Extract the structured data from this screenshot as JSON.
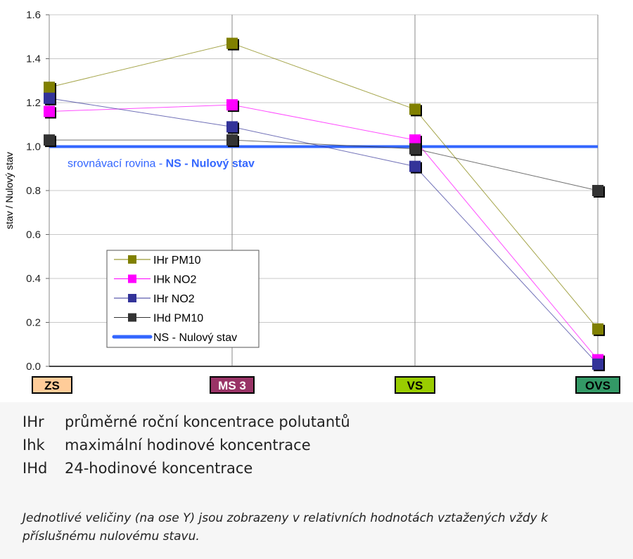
{
  "chart_data": {
    "type": "line",
    "ylabel": "stav / Nulový stav",
    "ylim": [
      0,
      1.6
    ],
    "yticks": [
      "0.0",
      "0.2",
      "0.4",
      "0.6",
      "0.8",
      "1.0",
      "1.2",
      "1.4",
      "1.6"
    ],
    "categories": [
      "ZS",
      "MS 3",
      "VS",
      "OVS"
    ],
    "category_colors": [
      "#ffcc99",
      "#993366",
      "#99cc00",
      "#339966"
    ],
    "category_text_colors": [
      "#000000",
      "#ffffff",
      "#000000",
      "#000000"
    ],
    "series": [
      {
        "name": "IHr PM10",
        "color": "#808000",
        "values": [
          1.27,
          1.47,
          1.17,
          0.17
        ]
      },
      {
        "name": "IHk NO2",
        "color": "#ff00ff",
        "values": [
          1.16,
          1.19,
          1.03,
          0.03
        ]
      },
      {
        "name": "IHr NO2",
        "color": "#333399",
        "values": [
          1.22,
          1.09,
          0.91,
          0.01
        ]
      },
      {
        "name": "IHd PM10",
        "color": "#333333",
        "values": [
          1.03,
          1.03,
          0.99,
          0.8
        ]
      }
    ],
    "reference": {
      "name": "NS - Nulový stav",
      "value": 1.0,
      "color": "#3366ff",
      "annotation_prefix": "srovnávací rovina - ",
      "annotation_bold": "NS - Nulový stav"
    },
    "legend_position": "lower-left"
  },
  "notes": {
    "definitions": [
      {
        "key": "IHr",
        "text": "průměrné roční koncentrace polutantů"
      },
      {
        "key": "Ihk",
        "text": "maximální hodinové koncentrace"
      },
      {
        "key": "IHd",
        "text": "24-hodinové koncentrace"
      }
    ],
    "footnote": "Jednotlivé veličiny (na ose Y) jsou zobrazeny v relativních hodnotách vztažených vždy k příslušnému nulovému stavu."
  }
}
